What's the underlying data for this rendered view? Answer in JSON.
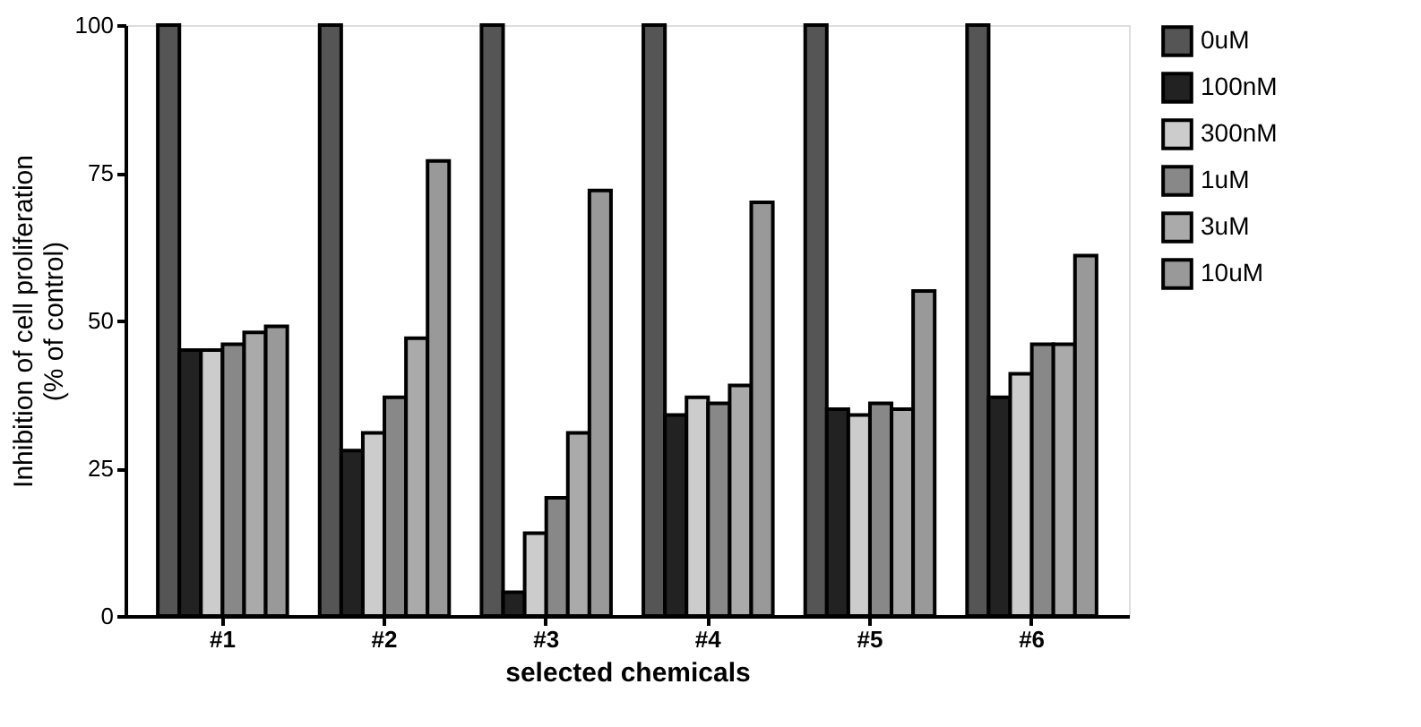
{
  "chart_data": {
    "type": "bar",
    "xlabel": "selected chemicals",
    "ylabel": "Inhibition of cell proliferation\n(% of control)",
    "categories": [
      "#1",
      "#2",
      "#3",
      "#4",
      "#5",
      "#6"
    ],
    "series": [
      {
        "name": "0uM",
        "color": "#555555",
        "values": [
          100,
          100,
          100,
          100,
          100,
          100
        ]
      },
      {
        "name": "100nM",
        "color": "#222222",
        "values": [
          45,
          28,
          4,
          34,
          35,
          37
        ]
      },
      {
        "name": "300nM",
        "color": "#cccccc",
        "values": [
          45,
          31,
          14,
          37,
          34,
          41
        ]
      },
      {
        "name": "1uM",
        "color": "#888888",
        "values": [
          46,
          37,
          20,
          36,
          36,
          46
        ]
      },
      {
        "name": "3uM",
        "color": "#aaaaaa",
        "values": [
          48,
          47,
          31,
          39,
          35,
          46
        ]
      },
      {
        "name": "10uM",
        "color": "#999999",
        "values": [
          49,
          77,
          72,
          70,
          55,
          61
        ]
      }
    ],
    "ylim": [
      0,
      100
    ],
    "yticks": [
      0,
      25,
      50,
      75,
      100
    ],
    "grid": false,
    "legend": "right"
  }
}
